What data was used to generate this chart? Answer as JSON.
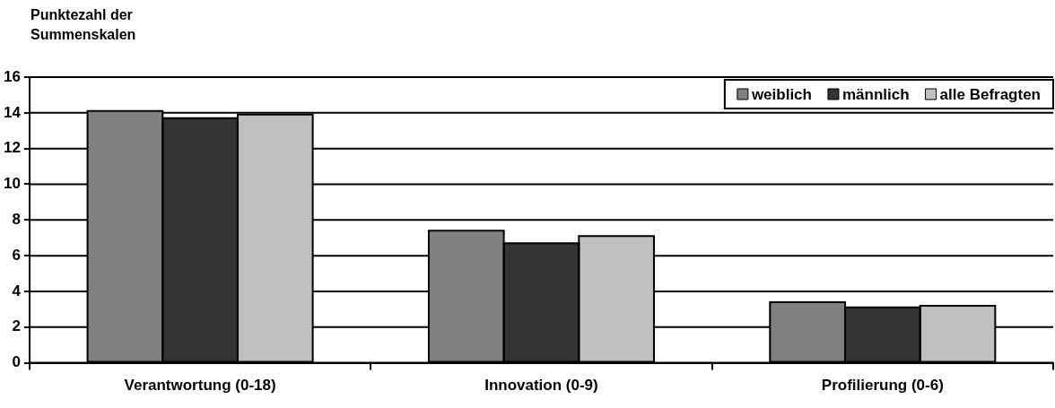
{
  "chart_data": {
    "type": "bar",
    "ylabel": "Punktezahl der Summenskalen",
    "categories": [
      "Verantwortung (0-18)",
      "Innovation (0-9)",
      "Profilierung (0-6)"
    ],
    "series": [
      {
        "name": "weiblich",
        "color": "#808080",
        "values": [
          14.1,
          7.4,
          3.4
        ]
      },
      {
        "name": "männlich",
        "color": "#333333",
        "values": [
          13.7,
          6.7,
          3.1
        ]
      },
      {
        "name": "alle Befragten",
        "color": "#c0c0c0",
        "values": [
          13.9,
          7.1,
          3.2
        ]
      }
    ],
    "ylim": [
      0,
      16
    ],
    "yticks": [
      0,
      2,
      4,
      6,
      8,
      10,
      12,
      14,
      16
    ],
    "grid": "y",
    "legend": "top right"
  }
}
